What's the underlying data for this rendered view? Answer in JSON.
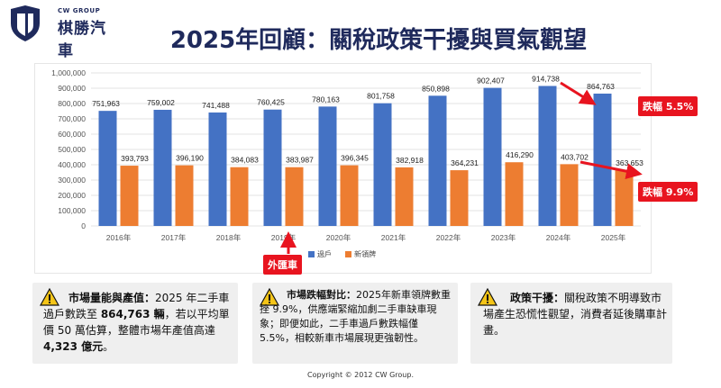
{
  "logo": {
    "sub": "CW GROUP",
    "name": "棋勝汽車"
  },
  "title": "2025年回顧：關稅政策干擾與買氣觀望",
  "colors": {
    "primary": "#4472c4",
    "secondary": "#ed7d31",
    "accent": "#e8141f",
    "navy": "#1f2a5c"
  },
  "chart_data": {
    "type": "bar",
    "categories": [
      "2016年",
      "2017年",
      "2018年",
      "2019年",
      "2020年",
      "2021年",
      "2022年",
      "2023年",
      "2024年",
      "2025年"
    ],
    "series": [
      {
        "name": "過戶",
        "values": [
          751963,
          759002,
          741488,
          760425,
          780163,
          801758,
          850898,
          902407,
          914738,
          864763
        ],
        "labels": [
          "751,963",
          "759,002",
          "741,488",
          "760,425",
          "780,163",
          "801,758",
          "850,898",
          "902,407",
          "914,738",
          "864,763"
        ]
      },
      {
        "name": "新領牌",
        "values": [
          393793,
          396190,
          384083,
          383987,
          396345,
          382918,
          364231,
          416290,
          403702,
          363653
        ],
        "labels": [
          "393,793",
          "396,190",
          "384,083",
          "383,987",
          "396,345",
          "382,918",
          "364,231",
          "416,290",
          "403,702",
          "363,653"
        ]
      }
    ],
    "yticks": [
      "1,000,000",
      "900,000",
      "800,000",
      "700,000",
      "600,000",
      "500,000",
      "400,000",
      "300,000",
      "200,000",
      "100,000",
      "0"
    ],
    "ylim": [
      0,
      1000000
    ],
    "grid": true,
    "legend": "bottom"
  },
  "callouts": {
    "drop_transfer": "跌幅 5.5%",
    "drop_new": "跌幅 9.9%",
    "import_car": "外匯車"
  },
  "panels": [
    {
      "head": "市場量能與產值：",
      "t1": "2025 年二手車過戶數跌至 ",
      "b1": "864,763 輛",
      "t2": "，若以平均單價 50 萬估算，整體市場年產值高達 ",
      "b2": "4,323 億元",
      "t3": "。"
    },
    {
      "head": "市場跌幅對比：",
      "t1": "2025年新車領牌數重挫 9.9%，供應端緊縮加劇二手車缺車現象；即便如此，二手車過戶數跌幅僅 5.5%，相較新車市場展現更強韌性。"
    },
    {
      "head": "政策干擾：",
      "t1": "關稅政策不明導致市場產生恐慌性觀望，消費者延後購車計畫。"
    }
  ],
  "footer": "Copyright © 2012 CW Group."
}
